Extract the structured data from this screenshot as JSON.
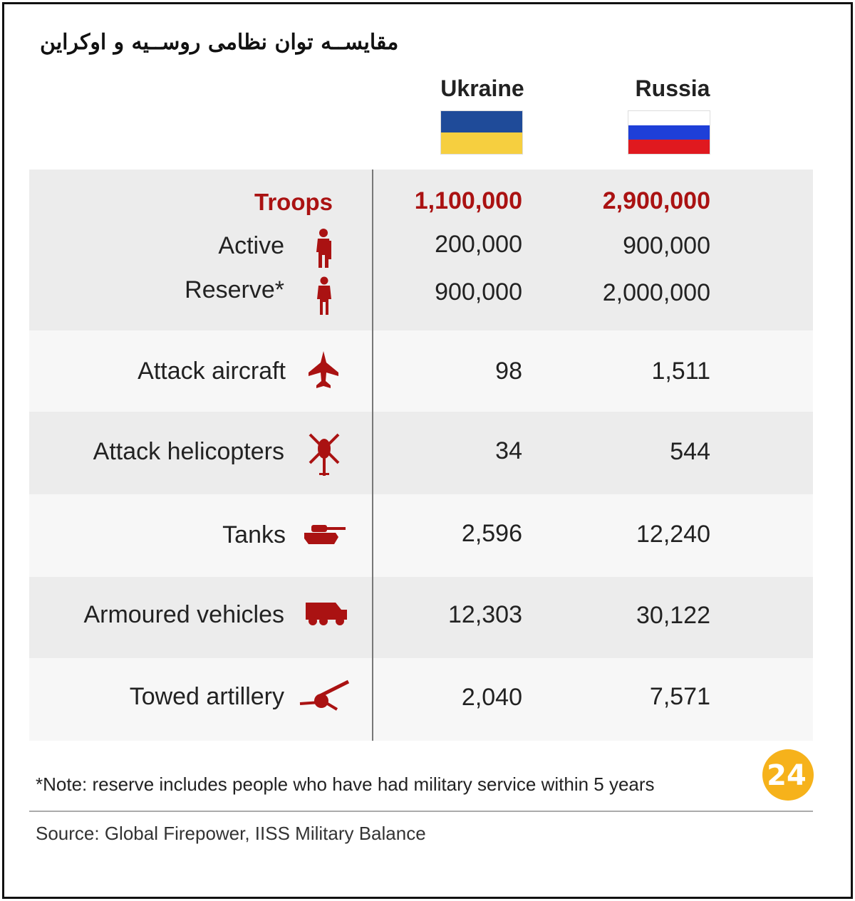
{
  "title": "مقایســه توان نظامی روســیه و اوکراین",
  "columns": {
    "ukraine": "Ukraine",
    "russia": "Russia"
  },
  "colors": {
    "accent_red": "#aa1212",
    "ukraine_blue": "#1f4b99",
    "ukraine_yellow": "#f6cf3f",
    "russia_white": "#ffffff",
    "russia_blue": "#1e3fd8",
    "russia_red": "#e0191f",
    "logo_orange": "#f6b21b"
  },
  "rows": {
    "troops": {
      "label": "Troops",
      "ukraine": "1,100,000",
      "russia": "2,900,000"
    },
    "active": {
      "label": "Active",
      "ukraine": "200,000",
      "russia": "900,000",
      "icon": "soldier-icon"
    },
    "reserve": {
      "label": "Reserve*",
      "ukraine": "900,000",
      "russia": "2,000,000",
      "icon": "person-icon"
    },
    "aircraft": {
      "label": "Attack aircraft",
      "ukraine": "98",
      "russia": "1,511",
      "icon": "jet-icon"
    },
    "helicopters": {
      "label": "Attack helicopters",
      "ukraine": "34",
      "russia": "544",
      "icon": "helicopter-icon"
    },
    "tanks": {
      "label": "Tanks",
      "ukraine": "2,596",
      "russia": "12,240",
      "icon": "tank-icon"
    },
    "armoured": {
      "label": "Armoured vehicles",
      "ukraine": "12,303",
      "russia": "30,122",
      "icon": "armoured-vehicle-icon"
    },
    "artillery": {
      "label": "Towed artillery",
      "ukraine": "2,040",
      "russia": "7,571",
      "icon": "artillery-icon"
    }
  },
  "note": "*Note: reserve includes people who have had military service within 5 years",
  "source": "Source: Global Firepower, IISS Military Balance",
  "logo_text": "24"
}
